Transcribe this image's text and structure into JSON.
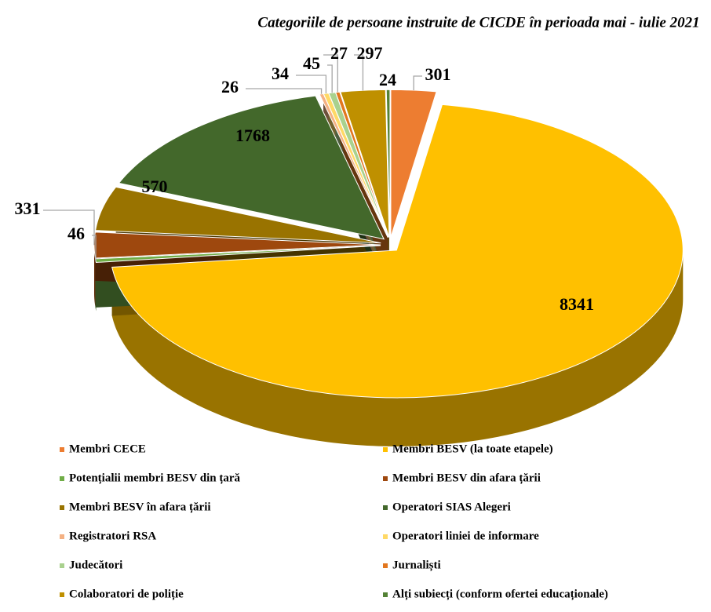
{
  "chart_data": {
    "type": "pie",
    "title": "Categoriile de persoane instruite de CICDE în perioada mai - iulie 2021",
    "categories": [
      "Membri CECE",
      "Membri BESV (la toate etapele)",
      "Potențialii membri BESV din țară",
      "Membri BESV din afara țării",
      "Membri BESV în afara țării",
      "Operatori SIAS Alegeri",
      "Registratori RSA",
      "Operatori liniei de informare",
      "Judecători",
      "Jurnaliști",
      "Colaboratori de poliție",
      "Alți subiecți (conform ofertei educaționale)"
    ],
    "values": [
      301,
      8341,
      46,
      331,
      570,
      1768,
      26,
      34,
      45,
      27,
      297,
      24
    ],
    "colors": [
      "#ED7D31",
      "#FFC000",
      "#70AD47",
      "#9E480E",
      "#997300",
      "#43682B",
      "#F4B183",
      "#FFD966",
      "#A9D18E",
      "#E2771F",
      "#BF9000",
      "#548235"
    ],
    "legend": "bottom"
  }
}
